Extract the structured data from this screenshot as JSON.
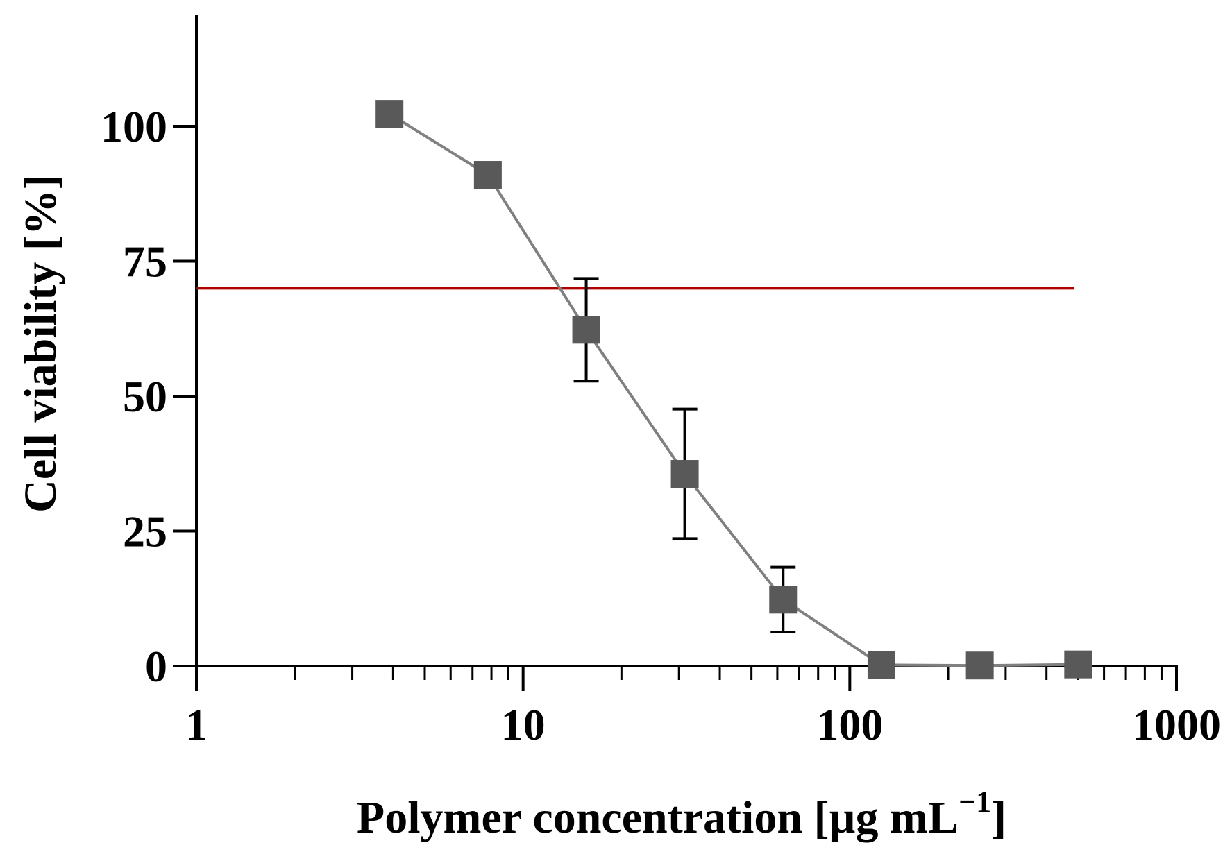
{
  "chart_data": {
    "type": "line",
    "title": "",
    "xlabel": "Polymer concentration [µg mL",
    "xlabel_superscript": "−1",
    "xlabel_suffix": "]",
    "ylabel": "Cell viability [%]",
    "x_scale": "log",
    "xlim": [
      1,
      1000
    ],
    "ylim": [
      0,
      120
    ],
    "x_ticks": [
      1,
      10,
      100,
      1000
    ],
    "x_tick_labels": [
      "1",
      "10",
      "100",
      "1000"
    ],
    "y_ticks": [
      0,
      25,
      50,
      75,
      100
    ],
    "y_tick_labels": [
      "0",
      "25",
      "50",
      "75",
      "100"
    ],
    "grid": false,
    "legend": "none",
    "series": [
      {
        "x": [
          3.9,
          7.8,
          15.6,
          31.25,
          62.5,
          125,
          250,
          500
        ],
        "y": [
          102.3,
          91.0,
          62.3,
          35.6,
          12.3,
          0.2,
          0.1,
          0.3
        ],
        "error": [
          0,
          0,
          9.5,
          12,
          6,
          0,
          0,
          0
        ],
        "line_color": "#808080",
        "marker_color": "#595959",
        "marker": "square"
      }
    ],
    "reference_line": {
      "y": 70,
      "color": "#b00000",
      "x_range": [
        1,
        500
      ]
    }
  }
}
